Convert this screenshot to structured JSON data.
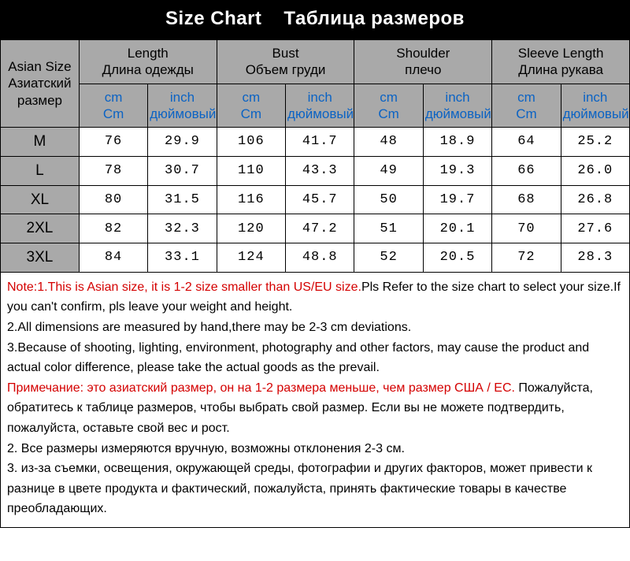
{
  "title": {
    "en": "Size Chart",
    "ru": "Таблица размеров"
  },
  "row_header": {
    "en": "Asian Size",
    "ru": "Азиатский размер"
  },
  "measurements": [
    {
      "en": "Length",
      "ru": "Длина одежды"
    },
    {
      "en": "Bust",
      "ru": "Объем груди"
    },
    {
      "en": "Shoulder",
      "ru": "плечо"
    },
    {
      "en": "Sleeve Length",
      "ru": "Длина рукава"
    }
  ],
  "unit_labels": {
    "cm": {
      "en": "cm",
      "ru": "Cm"
    },
    "inch": {
      "en": "inch",
      "ru": "дюймовый"
    }
  },
  "sizes": [
    "M",
    "L",
    "XL",
    "2XL",
    "3XL"
  ],
  "data_cm": {
    "M": [
      76,
      106,
      48,
      64
    ],
    "L": [
      78,
      110,
      49,
      66
    ],
    "XL": [
      80,
      116,
      50,
      68
    ],
    "2XL": [
      82,
      120,
      51,
      70
    ],
    "3XL": [
      84,
      124,
      52,
      72
    ]
  },
  "data_inch": {
    "M": [
      "29.9",
      "41.7",
      "18.9",
      "25.2"
    ],
    "L": [
      "30.7",
      "43.3",
      "19.3",
      "26.0"
    ],
    "XL": [
      "31.5",
      "45.7",
      "19.7",
      "26.8"
    ],
    "2XL": [
      "32.3",
      "47.2",
      "20.1",
      "27.6"
    ],
    "3XL": [
      "33.1",
      "48.8",
      "20.5",
      "28.3"
    ]
  },
  "notes": {
    "en_highlight": "Note:1.This is Asian size, it is 1-2 size smaller than US/EU size.",
    "en_rest": "Pls Refer to the size chart to select your size.If you can't confirm, pls leave your weight and height.",
    "en2": "2.All dimensions are measured by hand,there may be 2-3 cm deviations.",
    "en3": "3.Because of shooting, lighting, environment, photography and other factors, may cause the product and actual color difference, please take the actual goods as the prevail.",
    "ru_highlight": "Примечание: это азиатский размер, он на 1-2 размера меньше, чем размер США / ЕС.",
    "ru_rest": " Пожалуйста, обратитесь к таблице размеров, чтобы выбрать свой размер. Если вы не можете подтвердить, пожалуйста, оставьте свой вес и рост.",
    "ru2": "2. Все размеры измеряются вручную, возможны отклонения 2-3 см.",
    "ru3": "3. из-за съемки, освещения, окружающей среды, фотографии и других факторов, может привести к разнице в цвете продукта и фактический, пожалуйста, принять фактические товары в качестве преобладающих."
  },
  "colors": {
    "header_bg": "#a9a9a9",
    "unit_text": "#0b63c4",
    "note_highlight": "#d40000",
    "title_bg": "#000000",
    "title_fg": "#ffffff",
    "border": "#000000"
  }
}
